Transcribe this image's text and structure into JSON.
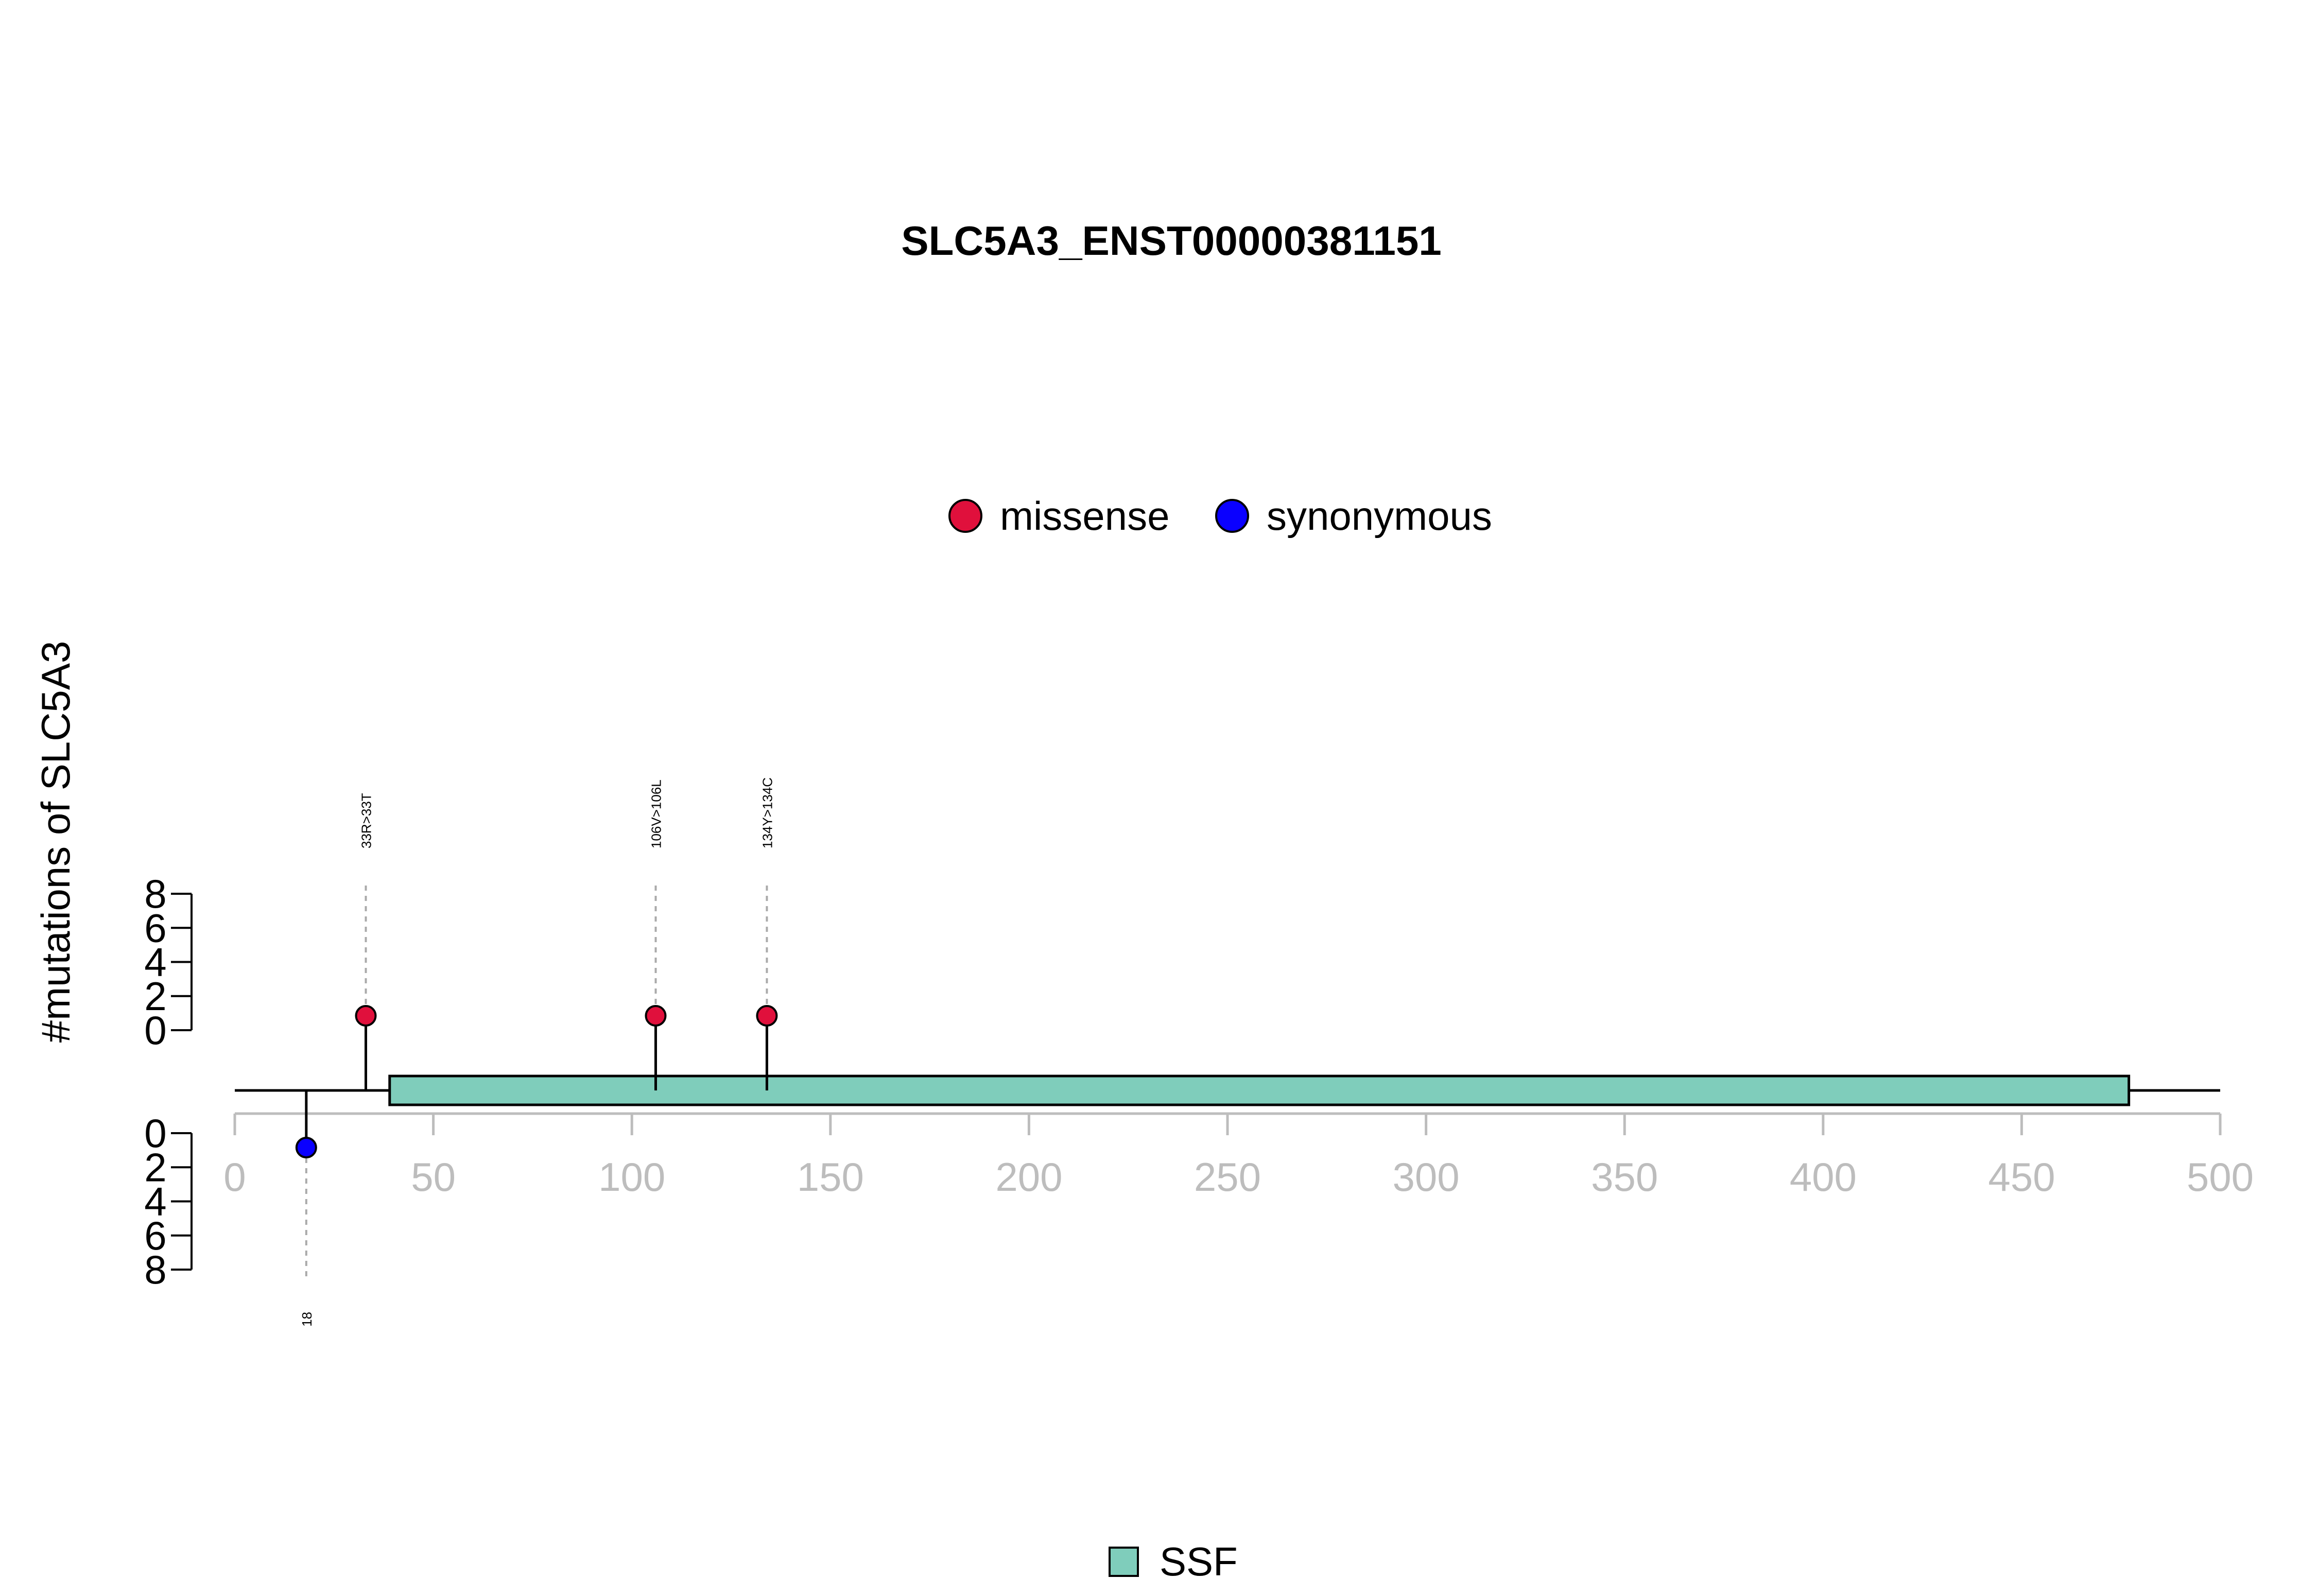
{
  "chart_data": {
    "type": "lollipop",
    "title": "SLC5A3_ENST00000381151",
    "ylabel": "#mutations of SLC5A3",
    "xlim": [
      0,
      500
    ],
    "x_ticks": [
      0,
      50,
      100,
      150,
      200,
      250,
      300,
      350,
      400,
      450,
      500
    ],
    "y_ticks_upper": [
      0,
      2,
      4,
      6,
      8
    ],
    "y_ticks_lower": [
      0,
      2,
      4,
      6,
      8
    ],
    "protein_length": 477,
    "legend": [
      {
        "label": "missense",
        "color": "#e0103c"
      },
      {
        "label": "synonymous",
        "color": "#0a00ff"
      }
    ],
    "domains": [
      {
        "name": "SSF",
        "start": 39,
        "end": 477,
        "color": "#7fcdbb"
      }
    ],
    "mutations": [
      {
        "position": 33,
        "label": "33R>33T",
        "type": "missense",
        "count": 1,
        "side": "upper"
      },
      {
        "position": 106,
        "label": "106V>106L",
        "type": "missense",
        "count": 1,
        "side": "upper"
      },
      {
        "position": 134,
        "label": "134Y>134C",
        "type": "missense",
        "count": 1,
        "side": "upper"
      },
      {
        "position": 18,
        "label": "18",
        "type": "synonymous",
        "count": 1,
        "side": "lower"
      }
    ]
  }
}
